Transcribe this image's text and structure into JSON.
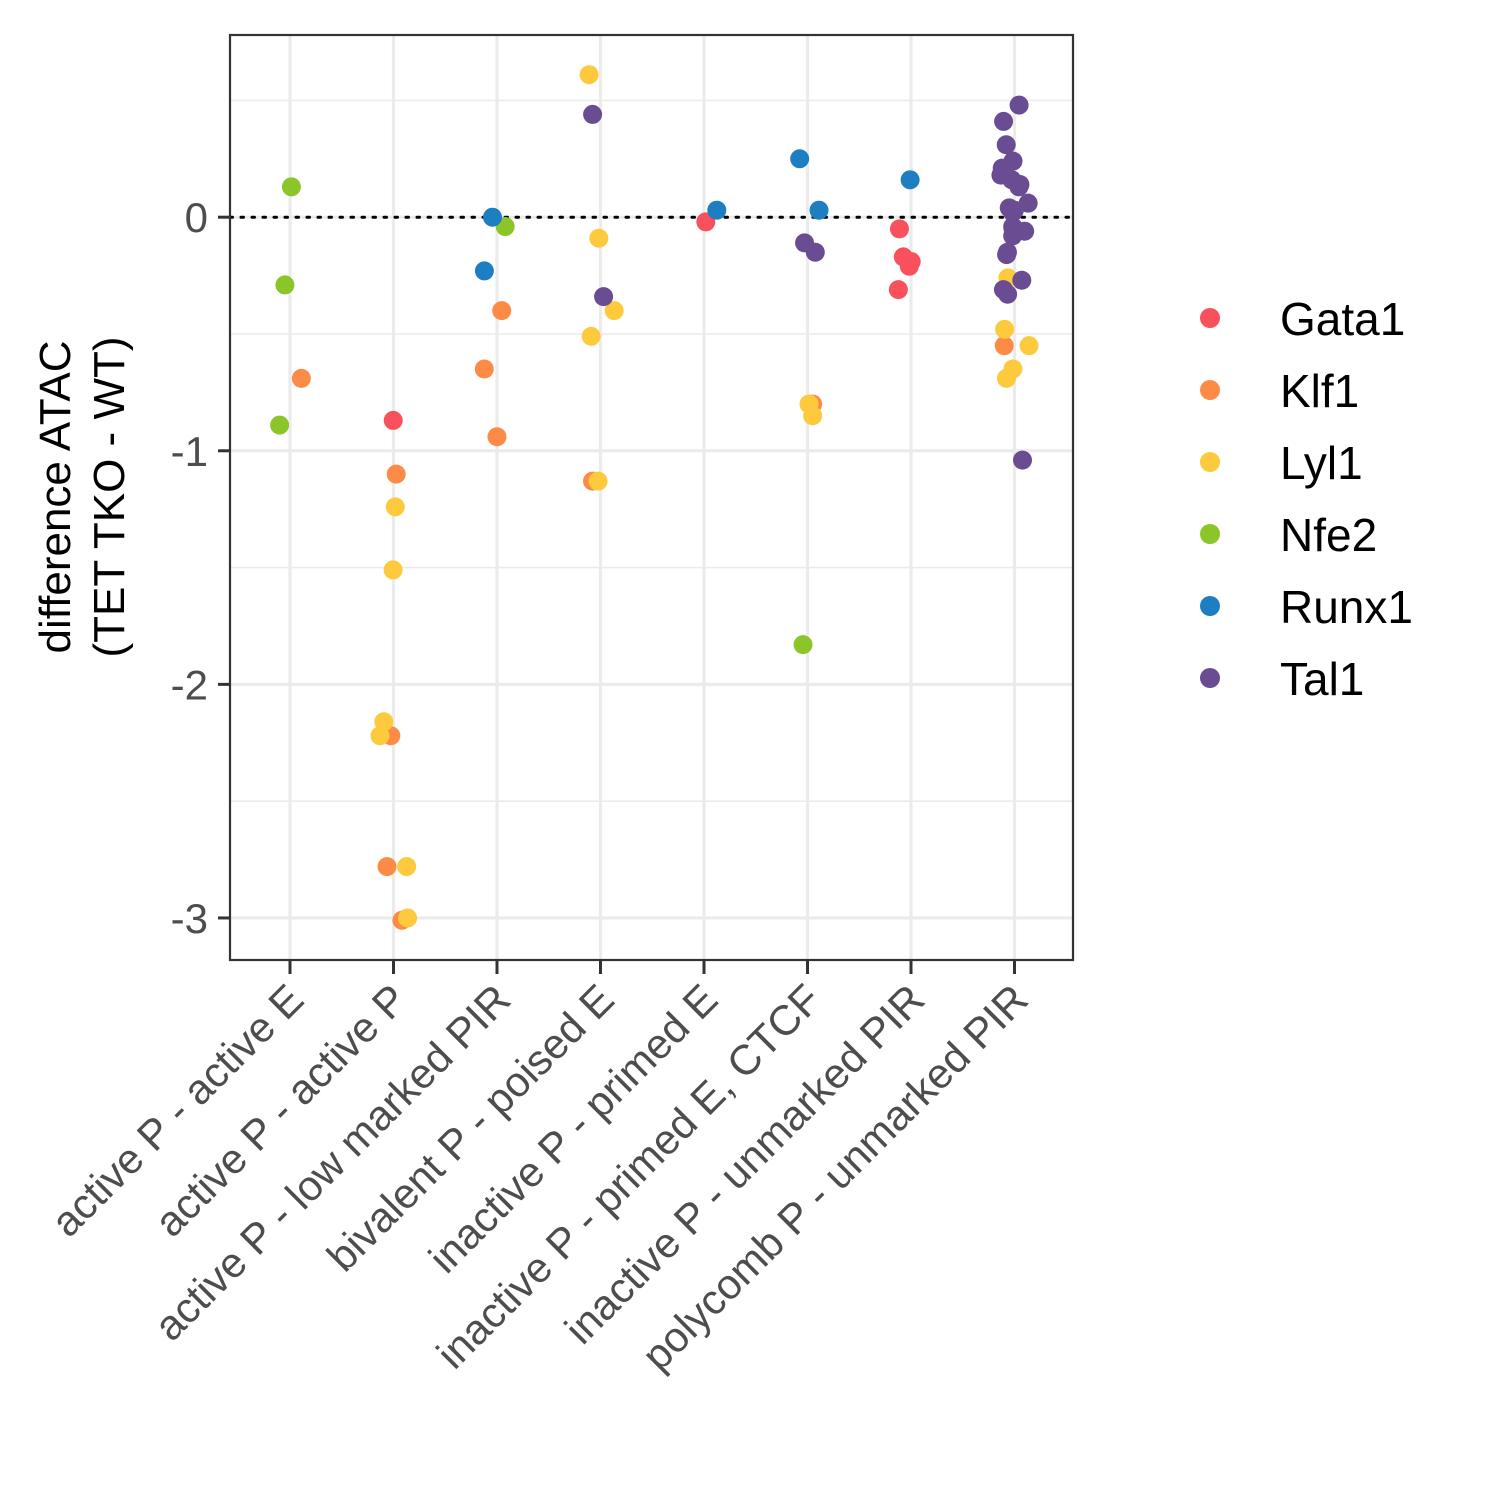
{
  "chart_data": {
    "type": "scatter",
    "ylabel_lines": [
      "difference ATAC",
      "(TET TKO - WT)"
    ],
    "xlabel": "",
    "ylim": [
      -3.18,
      0.78
    ],
    "y_ticks": [
      0,
      -1,
      -2,
      -3
    ],
    "y_tick_labels": [
      "0",
      "-1",
      "-2",
      "-3"
    ],
    "reference_line": 0,
    "grid": true,
    "legend_position": "right",
    "categories": [
      "active P - active E",
      "active P - active P",
      "active P - low marked PIR",
      "bivalent P - poised E",
      "inactive P - primed E",
      "inactive P - primed E, CTCF",
      "inactive P - unmarked PIR",
      "polycomb P - unmarked PIR"
    ],
    "series": [
      {
        "name": "Gata1",
        "color": "#f8505c",
        "points": [
          {
            "category": "active P - active P",
            "y": -0.87
          },
          {
            "category": "inactive P - primed E",
            "y": -0.02
          },
          {
            "category": "inactive P - unmarked PIR",
            "y": -0.05
          },
          {
            "category": "inactive P - unmarked PIR",
            "y": -0.17
          },
          {
            "category": "inactive P - unmarked PIR",
            "y": -0.21
          },
          {
            "category": "inactive P - unmarked PIR",
            "y": -0.19
          },
          {
            "category": "inactive P - unmarked PIR",
            "y": -0.31
          }
        ]
      },
      {
        "name": "Klf1",
        "color": "#fd8b48",
        "points": [
          {
            "category": "active P - active E",
            "y": -0.69
          },
          {
            "category": "active P - active P",
            "y": -1.1
          },
          {
            "category": "active P - active P",
            "y": -2.22
          },
          {
            "category": "active P - active P",
            "y": -2.78
          },
          {
            "category": "active P - active P",
            "y": -3.01
          },
          {
            "category": "active P - low marked PIR",
            "y": -0.4
          },
          {
            "category": "active P - low marked PIR",
            "y": -0.65
          },
          {
            "category": "active P - low marked PIR",
            "y": -0.94
          },
          {
            "category": "bivalent P - poised E",
            "y": -1.13
          },
          {
            "category": "inactive P - primed E, CTCF",
            "y": -0.8
          },
          {
            "category": "polycomb P - unmarked PIR",
            "y": -0.55
          }
        ]
      },
      {
        "name": "Lyl1",
        "color": "#fdc93d",
        "points": [
          {
            "category": "active P - active P",
            "y": -1.24
          },
          {
            "category": "active P - active P",
            "y": -1.51
          },
          {
            "category": "active P - active P",
            "y": -2.16
          },
          {
            "category": "active P - active P",
            "y": -2.22
          },
          {
            "category": "active P - active P",
            "y": -2.78
          },
          {
            "category": "active P - active P",
            "y": -3.0
          },
          {
            "category": "bivalent P - poised E",
            "y": 0.61
          },
          {
            "category": "bivalent P - poised E",
            "y": -0.09
          },
          {
            "category": "bivalent P - poised E",
            "y": -0.4
          },
          {
            "category": "bivalent P - poised E",
            "y": -0.51
          },
          {
            "category": "bivalent P - poised E",
            "y": -1.13
          },
          {
            "category": "inactive P - primed E, CTCF",
            "y": -0.8
          },
          {
            "category": "inactive P - primed E, CTCF",
            "y": -0.85
          },
          {
            "category": "polycomb P - unmarked PIR",
            "y": -0.26
          },
          {
            "category": "polycomb P - unmarked PIR",
            "y": -0.48
          },
          {
            "category": "polycomb P - unmarked PIR",
            "y": -0.55
          },
          {
            "category": "polycomb P - unmarked PIR",
            "y": -0.65
          },
          {
            "category": "polycomb P - unmarked PIR",
            "y": -0.69
          }
        ]
      },
      {
        "name": "Nfe2",
        "color": "#8cc52a",
        "points": [
          {
            "category": "active P - active E",
            "y": 0.13
          },
          {
            "category": "active P - active E",
            "y": -0.29
          },
          {
            "category": "active P - active E",
            "y": -0.89
          },
          {
            "category": "active P - low marked PIR",
            "y": -0.04
          },
          {
            "category": "inactive P - primed E, CTCF",
            "y": -1.83
          }
        ]
      },
      {
        "name": "Runx1",
        "color": "#1d7ec2",
        "points": [
          {
            "category": "active P - low marked PIR",
            "y": 0.0
          },
          {
            "category": "active P - low marked PIR",
            "y": -0.23
          },
          {
            "category": "inactive P - primed E",
            "y": 0.03
          },
          {
            "category": "inactive P - primed E, CTCF",
            "y": 0.25
          },
          {
            "category": "inactive P - primed E, CTCF",
            "y": 0.03
          },
          {
            "category": "inactive P - unmarked PIR",
            "y": 0.16
          }
        ]
      },
      {
        "name": "Tal1",
        "color": "#6a4c93",
        "points": [
          {
            "category": "bivalent P - poised E",
            "y": 0.44
          },
          {
            "category": "bivalent P - poised E",
            "y": -0.34
          },
          {
            "category": "inactive P - primed E, CTCF",
            "y": -0.11
          },
          {
            "category": "inactive P - primed E, CTCF",
            "y": -0.15
          },
          {
            "category": "polycomb P - unmarked PIR",
            "y": 0.48
          },
          {
            "category": "polycomb P - unmarked PIR",
            "y": 0.41
          },
          {
            "category": "polycomb P - unmarked PIR",
            "y": 0.31
          },
          {
            "category": "polycomb P - unmarked PIR",
            "y": 0.24
          },
          {
            "category": "polycomb P - unmarked PIR",
            "y": 0.21
          },
          {
            "category": "polycomb P - unmarked PIR",
            "y": 0.18
          },
          {
            "category": "polycomb P - unmarked PIR",
            "y": 0.16
          },
          {
            "category": "polycomb P - unmarked PIR",
            "y": 0.14
          },
          {
            "category": "polycomb P - unmarked PIR",
            "y": 0.13
          },
          {
            "category": "polycomb P - unmarked PIR",
            "y": 0.06
          },
          {
            "category": "polycomb P - unmarked PIR",
            "y": 0.04
          },
          {
            "category": "polycomb P - unmarked PIR",
            "y": 0.02
          },
          {
            "category": "polycomb P - unmarked PIR",
            "y": 0.03
          },
          {
            "category": "polycomb P - unmarked PIR",
            "y": -0.04
          },
          {
            "category": "polycomb P - unmarked PIR",
            "y": -0.06
          },
          {
            "category": "polycomb P - unmarked PIR",
            "y": -0.05
          },
          {
            "category": "polycomb P - unmarked PIR",
            "y": -0.08
          },
          {
            "category": "polycomb P - unmarked PIR",
            "y": -0.15
          },
          {
            "category": "polycomb P - unmarked PIR",
            "y": -0.16
          },
          {
            "category": "polycomb P - unmarked PIR",
            "y": -0.27
          },
          {
            "category": "polycomb P - unmarked PIR",
            "y": -0.31
          },
          {
            "category": "polycomb P - unmarked PIR",
            "y": -0.33
          },
          {
            "category": "polycomb P - unmarked PIR",
            "y": -1.04
          }
        ]
      }
    ]
  }
}
